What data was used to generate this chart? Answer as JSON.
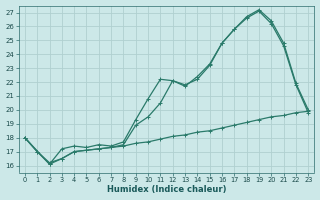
{
  "xlabel": "Humidex (Indice chaleur)",
  "bg_color": "#cce8e8",
  "grid_color": "#b0d0d0",
  "line_color": "#2a7a6a",
  "xlim": [
    -0.5,
    23.5
  ],
  "ylim": [
    15.5,
    27.5
  ],
  "xticks": [
    0,
    1,
    2,
    3,
    4,
    5,
    6,
    7,
    8,
    9,
    10,
    11,
    12,
    13,
    14,
    15,
    16,
    17,
    18,
    19,
    20,
    21,
    22,
    23
  ],
  "yticks": [
    16,
    17,
    18,
    19,
    20,
    21,
    22,
    23,
    24,
    25,
    26,
    27
  ],
  "series1_x": [
    0,
    1,
    2,
    3,
    4,
    5,
    6,
    7,
    8,
    9,
    10,
    11,
    12,
    13,
    14,
    15,
    16,
    17,
    18,
    19,
    20,
    21,
    22,
    23
  ],
  "series1_y": [
    18,
    17,
    16.1,
    16.5,
    17.0,
    17.1,
    17.2,
    17.3,
    17.5,
    18.9,
    19.5,
    20.5,
    22.1,
    21.8,
    22.2,
    23.2,
    24.8,
    25.8,
    26.6,
    27.1,
    26.2,
    24.6,
    21.8,
    19.8
  ],
  "series2_x": [
    0,
    2,
    3,
    4,
    5,
    6,
    7,
    8,
    9,
    10,
    11,
    12,
    13,
    14,
    15,
    16,
    17,
    18,
    19,
    20,
    21,
    22,
    23
  ],
  "series2_y": [
    18,
    16.1,
    17.2,
    17.4,
    17.3,
    17.5,
    17.4,
    17.7,
    19.3,
    20.8,
    22.2,
    22.1,
    21.7,
    22.4,
    23.3,
    24.8,
    25.8,
    26.7,
    27.2,
    26.4,
    24.8,
    21.9,
    20.0
  ],
  "series3_x": [
    0,
    1,
    2,
    3,
    4,
    5,
    6,
    7,
    8,
    9,
    10,
    11,
    12,
    13,
    14,
    15,
    16,
    17,
    18,
    19,
    20,
    21,
    22,
    23
  ],
  "series3_y": [
    18.0,
    17.0,
    16.2,
    16.5,
    17.0,
    17.1,
    17.2,
    17.3,
    17.4,
    17.6,
    17.7,
    17.9,
    18.1,
    18.2,
    18.4,
    18.5,
    18.7,
    18.9,
    19.1,
    19.3,
    19.5,
    19.6,
    19.8,
    19.9
  ]
}
